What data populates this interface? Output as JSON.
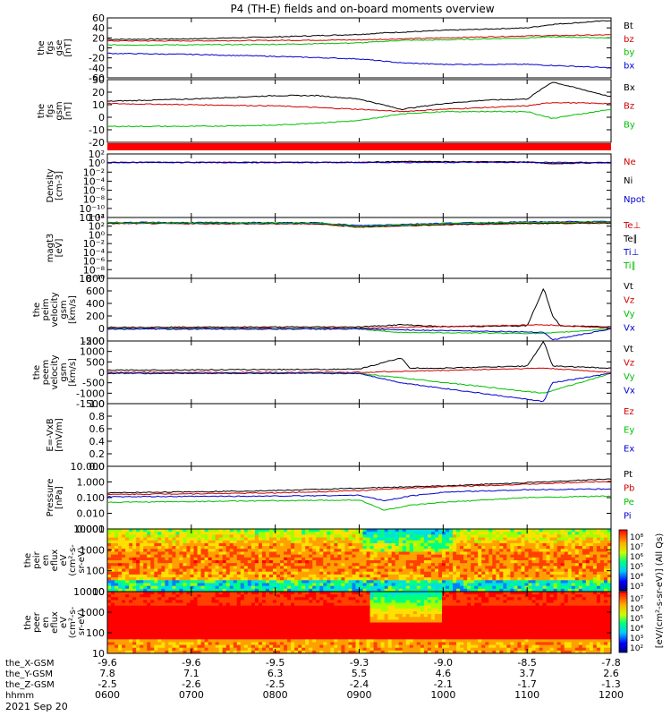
{
  "title": "P4 (TH-E) fields and on-board moments overview",
  "date_label": "2021 Sep 20",
  "colors": {
    "black": "#000000",
    "red": "#d00000",
    "green": "#00c000",
    "blue": "#0000d0",
    "grid": "#000000"
  },
  "chart_data": [
    {
      "type": "line",
      "id": "fgs_gse",
      "ylabel": [
        "the",
        "fgs",
        "gse",
        "[nT]"
      ],
      "ylim": [
        -60,
        60
      ],
      "yticks": [
        "60",
        "40",
        "20",
        "0",
        "-20",
        "-40",
        "-60"
      ],
      "series": [
        {
          "name": "Bt",
          "color": "black",
          "x": [
            6.0,
            7.0,
            8.0,
            9.0,
            9.3,
            10.0,
            11.0,
            11.3,
            12.0
          ],
          "values": [
            17,
            18,
            22,
            27,
            30,
            35,
            40,
            47,
            55
          ]
        },
        {
          "name": "bz",
          "color": "red",
          "x": [
            6.0,
            7.0,
            8.0,
            9.0,
            10.0,
            11.0,
            12.0
          ],
          "values": [
            14,
            14,
            15,
            16,
            20,
            24,
            26
          ]
        },
        {
          "name": "by",
          "color": "green",
          "x": [
            6.0,
            7.0,
            8.0,
            9.0,
            9.5,
            10.0,
            11.0,
            11.3,
            12.0
          ],
          "values": [
            6,
            6,
            7,
            10,
            15,
            16,
            20,
            22,
            20
          ]
        },
        {
          "name": "bx",
          "color": "blue",
          "x": [
            6.0,
            7.0,
            8.0,
            9.0,
            9.5,
            10.0,
            11.0,
            12.0
          ],
          "values": [
            -11,
            -13,
            -17,
            -22,
            -30,
            -33,
            -33,
            -40
          ]
        }
      ]
    },
    {
      "type": "line",
      "id": "fgs_gsm",
      "ylabel": [
        "the",
        "fgs",
        "gsm",
        "[nT]"
      ],
      "ylim": [
        -25,
        30
      ],
      "yticks": [
        "30",
        "20",
        "10",
        "0",
        "-10",
        "-20"
      ],
      "series": [
        {
          "name": "Bx",
          "color": "black",
          "x": [
            6.0,
            7.0,
            8.0,
            8.5,
            9.0,
            9.5,
            10.0,
            10.5,
            11.0,
            11.3,
            12.0
          ],
          "values": [
            11,
            13,
            16,
            16,
            13,
            4,
            9,
            12,
            13,
            28,
            15
          ]
        },
        {
          "name": "Bz",
          "color": "red",
          "x": [
            6.0,
            7.0,
            8.0,
            9.0,
            9.5,
            10.0,
            11.0,
            11.3,
            12.0
          ],
          "values": [
            9,
            8,
            7,
            4,
            2,
            4,
            7,
            10,
            9
          ]
        },
        {
          "name": "By",
          "color": "green",
          "x": [
            6.0,
            7.0,
            8.0,
            9.0,
            9.5,
            10.0,
            11.0,
            11.3,
            12.0
          ],
          "values": [
            -11,
            -11,
            -10,
            -6,
            0,
            2,
            2,
            -4,
            4
          ]
        }
      ]
    },
    {
      "type": "line",
      "id": "density",
      "ylabel": [
        "Density",
        "[cm-3]"
      ],
      "ylog": true,
      "ylim_exp": [
        -13,
        2
      ],
      "yticks": [
        "10²",
        "10⁰",
        "10⁻²",
        "10⁻⁴",
        "10⁻⁶",
        "10⁻⁸",
        "10⁻¹⁰",
        "10⁻¹²"
      ],
      "series": [
        {
          "name": "Ne",
          "color": "red",
          "x": [
            6.0,
            9.0,
            9.5,
            11.0,
            11.3,
            12.0
          ],
          "values_exp": [
            0.0,
            0.0,
            0.2,
            0.1,
            -0.3,
            0.0
          ]
        },
        {
          "name": "Ni",
          "color": "black",
          "x": [
            6.0,
            9.0,
            9.5,
            11.0,
            11.3,
            12.0
          ],
          "values_exp": [
            0.0,
            0.0,
            0.2,
            0.1,
            -0.3,
            0.0
          ]
        },
        {
          "name": "Npot",
          "color": "blue",
          "x": [
            6.0,
            12.0
          ],
          "values_exp": [
            0.0,
            0.0
          ]
        }
      ]
    },
    {
      "type": "line",
      "id": "temperature",
      "ylabel": [
        "magt3",
        "[eV]"
      ],
      "ylog": true,
      "ylim_exp": [
        -10,
        5
      ],
      "yticks": [
        "10⁴",
        "10²",
        "10⁰",
        "10⁻²",
        "10⁻⁴",
        "10⁻⁶",
        "10⁻⁸",
        "10⁻¹⁰"
      ],
      "series": [
        {
          "name": "Te⊥",
          "color": "red",
          "x": [
            6.0,
            8.5,
            9.0,
            9.5,
            10.0,
            11.0,
            12.0
          ],
          "values_exp": [
            3.5,
            3.4,
            2.6,
            2.9,
            3.2,
            3.5,
            3.6
          ]
        },
        {
          "name": "Te∥",
          "color": "black",
          "x": [
            6.0,
            8.5,
            9.0,
            9.5,
            10.0,
            11.0,
            12.0
          ],
          "values_exp": [
            3.6,
            3.5,
            2.7,
            3.0,
            3.3,
            3.6,
            3.7
          ]
        },
        {
          "name": "Ti⊥",
          "color": "blue",
          "x": [
            6.0,
            8.5,
            9.0,
            9.5,
            10.0,
            11.0,
            12.0
          ],
          "values_exp": [
            3.8,
            3.7,
            3.0,
            3.3,
            3.6,
            3.9,
            4.0
          ]
        },
        {
          "name": "Ti∥",
          "color": "green",
          "x": [
            6.0,
            8.5,
            9.0,
            9.5,
            10.0,
            11.0,
            12.0
          ],
          "values_exp": [
            3.7,
            3.6,
            2.8,
            3.1,
            3.5,
            3.8,
            3.9
          ]
        }
      ]
    },
    {
      "type": "line",
      "id": "peim_velocity",
      "ylabel": [
        "the",
        "peim",
        "velocity",
        "gsm",
        "[km/s]"
      ],
      "ylim": [
        -200,
        800
      ],
      "yticks": [
        "800",
        "600",
        "400",
        "200",
        "0",
        "-200"
      ],
      "series": [
        {
          "name": "Vt",
          "color": "black",
          "x": [
            6.0,
            9.0,
            9.5,
            10.0,
            11.0,
            11.2,
            11.3,
            11.4,
            12.0
          ],
          "values": [
            20,
            25,
            60,
            30,
            40,
            650,
            200,
            40,
            30
          ]
        },
        {
          "name": "Vz",
          "color": "red",
          "x": [
            6.0,
            9.0,
            11.2,
            12.0
          ],
          "values": [
            0,
            5,
            60,
            5
          ]
        },
        {
          "name": "Vy",
          "color": "green",
          "x": [
            6.0,
            9.0,
            9.4,
            11.2,
            12.0
          ],
          "values": [
            -5,
            -5,
            -60,
            -80,
            -5
          ]
        },
        {
          "name": "Vx",
          "color": "blue",
          "x": [
            6.0,
            9.0,
            11.2,
            11.3,
            12.0
          ],
          "values": [
            -10,
            -10,
            -60,
            -180,
            -10
          ]
        }
      ]
    },
    {
      "type": "line",
      "id": "peem_velocity",
      "ylabel": [
        "the",
        "peem",
        "velocity",
        "gsm",
        "[km/s]"
      ],
      "ylim": [
        -1500,
        1500
      ],
      "yticks": [
        "1500",
        "1000",
        "500",
        "0",
        "-500",
        "-1000",
        "-1500"
      ],
      "series": [
        {
          "name": "Vt",
          "color": "black",
          "x": [
            6.0,
            9.0,
            9.5,
            9.6,
            10.0,
            11.0,
            11.2,
            11.3,
            12.0
          ],
          "values": [
            100,
            150,
            700,
            200,
            200,
            300,
            1500,
            300,
            200
          ]
        },
        {
          "name": "Vz",
          "color": "red",
          "x": [
            6.0,
            9.0,
            11.2,
            12.0
          ],
          "values": [
            0,
            0,
            200,
            0
          ]
        },
        {
          "name": "Vy",
          "color": "green",
          "x": [
            6.0,
            9.0,
            11.2,
            12.0
          ],
          "values": [
            -50,
            -50,
            -1000,
            -50
          ]
        },
        {
          "name": "Vx",
          "color": "blue",
          "x": [
            6.0,
            9.0,
            9.5,
            11.2,
            11.3,
            12.0
          ],
          "values": [
            -50,
            -50,
            -500,
            -1400,
            -500,
            -50
          ]
        }
      ]
    },
    {
      "type": "line",
      "id": "efield",
      "ylabel": [
        "E=-VxB",
        "[mV/m]"
      ],
      "ylim": [
        0,
        1
      ],
      "yticks": [
        "1.0",
        "0.8",
        "0.6",
        "0.4",
        "0.2",
        "0.0"
      ],
      "series": [
        {
          "name": "Ez",
          "color": "red",
          "x": [],
          "values": []
        },
        {
          "name": "Ey",
          "color": "green",
          "x": [],
          "values": []
        },
        {
          "name": "Ex",
          "color": "blue",
          "x": [],
          "values": []
        }
      ]
    },
    {
      "type": "line",
      "id": "pressure",
      "ylabel": [
        "Pressure",
        "[nPa]"
      ],
      "ylog": true,
      "ylim_exp": [
        -3,
        1
      ],
      "yticks": [
        "10.000",
        "1.000",
        "0.100",
        "0.010",
        "0.001"
      ],
      "series": [
        {
          "name": "Pt",
          "color": "black",
          "x": [
            6.0,
            8.0,
            9.0,
            10.0,
            11.0,
            12.0
          ],
          "values_exp": [
            -0.7,
            -0.55,
            -0.4,
            -0.25,
            -0.05,
            0.2
          ]
        },
        {
          "name": "Pb",
          "color": "red",
          "x": [
            6.0,
            8.0,
            9.0,
            10.0,
            11.0,
            12.0
          ],
          "values_exp": [
            -0.8,
            -0.7,
            -0.55,
            -0.3,
            -0.15,
            0.05
          ]
        },
        {
          "name": "Pe",
          "color": "green",
          "x": [
            6.0,
            8.0,
            9.0,
            9.3,
            9.6,
            10.0,
            11.0,
            12.0
          ],
          "values_exp": [
            -1.3,
            -1.2,
            -1.15,
            -1.8,
            -1.5,
            -1.3,
            -1.0,
            -0.9
          ]
        },
        {
          "name": "Pi",
          "color": "blue",
          "x": [
            6.0,
            8.0,
            9.0,
            9.3,
            9.6,
            10.0,
            11.0,
            12.0
          ],
          "values_exp": [
            -0.95,
            -0.9,
            -0.85,
            -1.2,
            -0.9,
            -0.65,
            -0.5,
            -0.45
          ]
        }
      ]
    },
    {
      "type": "heatmap",
      "id": "peir_spectrogram",
      "ylabel": [
        "the",
        "peir",
        "en",
        "eflux",
        "eV",
        "(cm²-s-",
        "sr-eV)"
      ],
      "ylog": true,
      "ylim_exp": [
        0.8,
        4.3
      ],
      "yticks": [
        "10000",
        "1000",
        "100",
        "10"
      ]
    },
    {
      "type": "heatmap",
      "id": "peer_spectrogram",
      "ylabel": [
        "the",
        "peer",
        "en",
        "eflux",
        "eV",
        "(cm²-s-",
        "sr-eV)"
      ],
      "ylog": true,
      "ylim_exp": [
        0.8,
        4.3
      ],
      "yticks": [
        "10000",
        "1000",
        "100",
        "10"
      ]
    }
  ],
  "colorbar": {
    "label": "[eV/(cm²-s-sr-eV)] (All Qs)",
    "ticks_upper": [
      "10⁸",
      "10⁷",
      "10⁶",
      "10⁵",
      "10⁴",
      "10³"
    ],
    "ticks_lower": [
      "10⁷",
      "10⁶",
      "10⁵",
      "10⁴",
      "10³",
      "10²"
    ]
  },
  "xaxis": {
    "row_labels": [
      "the_X-GSM",
      "the_Y-GSM",
      "the_Z-GSM",
      "hhmm"
    ],
    "xlim": [
      6.0,
      12.0
    ],
    "ticks": [
      {
        "x": 6.0,
        "X": "-9.6",
        "Y": "7.8",
        "Z": "-2.5",
        "hhmm": "0600"
      },
      {
        "x": 7.0,
        "X": "-9.6",
        "Y": "7.1",
        "Z": "-2.6",
        "hhmm": "0700"
      },
      {
        "x": 8.0,
        "X": "-9.5",
        "Y": "6.3",
        "Z": "-2.5",
        "hhmm": "0800"
      },
      {
        "x": 9.0,
        "X": "-9.3",
        "Y": "5.5",
        "Z": "-2.4",
        "hhmm": "0900"
      },
      {
        "x": 10.0,
        "X": "-9.0",
        "Y": "4.6",
        "Z": "-2.1",
        "hhmm": "1000"
      },
      {
        "x": 11.0,
        "X": "-8.5",
        "Y": "3.7",
        "Z": "-1.7",
        "hhmm": "1100"
      },
      {
        "x": 12.0,
        "X": "-7.8",
        "Y": "2.6",
        "Z": "-1.3",
        "hhmm": "1200"
      }
    ]
  }
}
